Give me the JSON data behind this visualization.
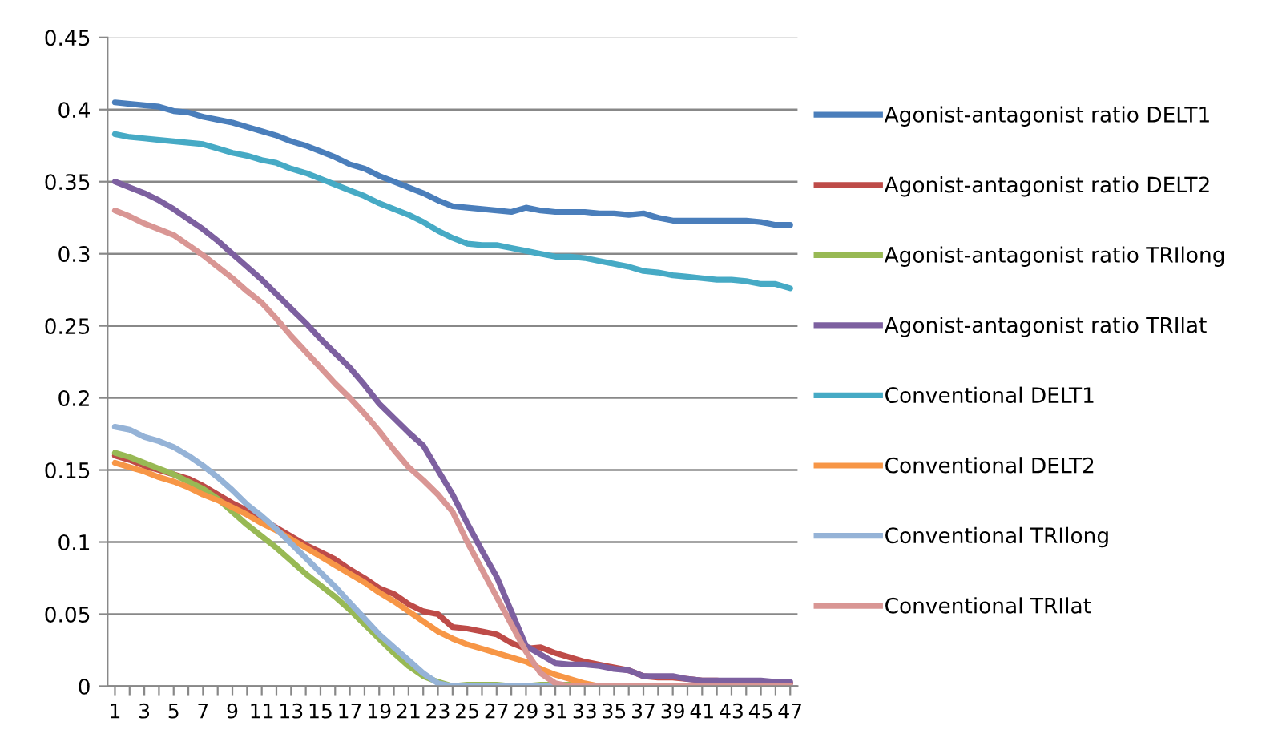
{
  "chart_data": {
    "type": "line",
    "categories": [
      "1",
      null,
      "3",
      null,
      "5",
      null,
      "7",
      null,
      "9",
      null,
      "11",
      null,
      "13",
      null,
      "15",
      null,
      "17",
      null,
      "19",
      null,
      "21",
      null,
      "23",
      null,
      "25",
      null,
      "27",
      null,
      "29",
      null,
      "31",
      null,
      "33",
      null,
      "35",
      null,
      "37",
      null,
      "39",
      null,
      "41",
      null,
      "43",
      null,
      "45",
      null,
      "47"
    ],
    "ylim": [
      0,
      0.45
    ],
    "yticks": [
      0,
      0.05,
      0.1,
      0.15,
      0.2,
      0.25,
      0.3,
      0.35,
      0.4,
      0.45
    ],
    "grid": "y",
    "legend": "right",
    "marker": "none",
    "line_style": "solid",
    "series": [
      {
        "name": "Agonist-antagonist ratio DELT1",
        "color": "#4a7ebb",
        "values": [
          0.405,
          0.404,
          0.403,
          0.402,
          0.399,
          0.398,
          0.395,
          0.393,
          0.391,
          0.388,
          0.385,
          0.382,
          0.378,
          0.375,
          0.371,
          0.367,
          0.362,
          0.359,
          0.354,
          0.35,
          0.346,
          0.342,
          0.337,
          0.333,
          0.332,
          0.331,
          0.33,
          0.329,
          0.332,
          0.33,
          0.329,
          0.329,
          0.329,
          0.328,
          0.328,
          0.327,
          0.328,
          0.325,
          0.323,
          0.323,
          0.323,
          0.323,
          0.323,
          0.323,
          0.322,
          0.32,
          0.32
        ]
      },
      {
        "name": "Agonist-antagonist ratio DELT2",
        "color": "#be4b48",
        "values": [
          0.16,
          0.157,
          0.153,
          0.15,
          0.147,
          0.144,
          0.139,
          0.133,
          0.127,
          0.122,
          0.116,
          0.11,
          0.104,
          0.098,
          0.093,
          0.088,
          0.081,
          0.075,
          0.068,
          0.064,
          0.057,
          0.052,
          0.05,
          0.041,
          0.04,
          0.038,
          0.036,
          0.03,
          0.026,
          0.027,
          0.023,
          0.02,
          0.017,
          0.015,
          0.013,
          0.011,
          0.007,
          0.006,
          0.006,
          0.005,
          0.004,
          0.004,
          0.003,
          0.003,
          0.002,
          0.002,
          0.002
        ]
      },
      {
        "name": "Agonist-antagonist ratio TRIlong",
        "color": "#98b954",
        "values": [
          0.162,
          0.159,
          0.155,
          0.151,
          0.147,
          0.142,
          0.137,
          0.13,
          0.121,
          0.112,
          0.104,
          0.096,
          0.087,
          0.078,
          0.07,
          0.062,
          0.053,
          0.043,
          0.033,
          0.023,
          0.014,
          0.007,
          0.003,
          0,
          0.001,
          0.001,
          0.001,
          0,
          0,
          0.001,
          0.001,
          0.001,
          0,
          0,
          null,
          null,
          null,
          null,
          null,
          null,
          null,
          null,
          null,
          null,
          null,
          null,
          null
        ]
      },
      {
        "name": "Agonist-antagonist ratio TRIlat",
        "color": "#7d60a0",
        "values": [
          0.35,
          0.346,
          0.342,
          0.337,
          0.331,
          0.324,
          0.317,
          0.309,
          0.3,
          0.291,
          0.282,
          0.272,
          0.262,
          0.252,
          0.241,
          0.231,
          0.221,
          0.209,
          0.196,
          0.186,
          0.176,
          0.167,
          0.15,
          0.133,
          0.113,
          0.094,
          0.076,
          0.052,
          0.028,
          0.022,
          0.016,
          0.015,
          0.015,
          0.014,
          0.012,
          0.011,
          0.007,
          0.007,
          0.007,
          0.005,
          0.004,
          0.004,
          0.004,
          0.004,
          0.004,
          0.003,
          0.003
        ]
      },
      {
        "name": "Conventional DELT1",
        "color": "#46aac5",
        "values": [
          0.383,
          0.381,
          0.38,
          0.379,
          0.378,
          0.377,
          0.376,
          0.373,
          0.37,
          0.368,
          0.365,
          0.363,
          0.359,
          0.356,
          0.352,
          0.348,
          0.344,
          0.34,
          0.335,
          0.331,
          0.327,
          0.322,
          0.316,
          0.311,
          0.307,
          0.306,
          0.306,
          0.304,
          0.302,
          0.3,
          0.298,
          0.298,
          0.297,
          0.295,
          0.293,
          0.291,
          0.288,
          0.287,
          0.285,
          0.284,
          0.283,
          0.282,
          0.282,
          0.281,
          0.279,
          0.279,
          0.276
        ]
      },
      {
        "name": "Conventional DELT2",
        "color": "#f79646",
        "values": [
          0.155,
          0.152,
          0.149,
          0.145,
          0.142,
          0.138,
          0.133,
          0.129,
          0.124,
          0.119,
          0.113,
          0.108,
          0.102,
          0.096,
          0.09,
          0.084,
          0.078,
          0.072,
          0.065,
          0.059,
          0.052,
          0.045,
          0.038,
          0.033,
          0.029,
          0.026,
          0.023,
          0.02,
          0.017,
          0.012,
          0.008,
          0.005,
          0.002,
          0,
          0,
          0,
          0,
          0,
          0,
          0,
          null,
          null,
          null,
          null,
          null,
          null,
          null
        ]
      },
      {
        "name": "Conventional TRIlong",
        "color": "#95b3d7",
        "values": [
          0.18,
          0.178,
          0.173,
          0.17,
          0.166,
          0.16,
          0.153,
          0.145,
          0.136,
          0.126,
          0.118,
          0.109,
          0.099,
          0.089,
          0.079,
          0.069,
          0.058,
          0.047,
          0.036,
          0.027,
          0.018,
          0.009,
          0.002,
          0,
          0,
          0,
          0,
          0,
          0,
          0,
          0,
          0,
          0,
          0,
          0,
          0,
          0,
          0,
          0,
          0,
          0,
          0,
          0,
          0,
          0,
          0,
          0
        ]
      },
      {
        "name": "Conventional TRIlat",
        "color": "#d99694",
        "values": [
          0.33,
          0.326,
          0.321,
          0.317,
          0.313,
          0.306,
          0.299,
          0.291,
          0.283,
          0.274,
          0.266,
          0.255,
          0.243,
          0.232,
          0.221,
          0.21,
          0.2,
          0.189,
          0.177,
          0.164,
          0.152,
          0.143,
          0.133,
          0.121,
          0.1,
          0.081,
          0.062,
          0.043,
          0.024,
          0.009,
          0.002,
          0,
          0,
          0,
          0,
          0,
          0,
          0,
          0,
          0,
          0,
          0,
          0,
          0,
          0,
          0,
          0
        ]
      }
    ]
  }
}
